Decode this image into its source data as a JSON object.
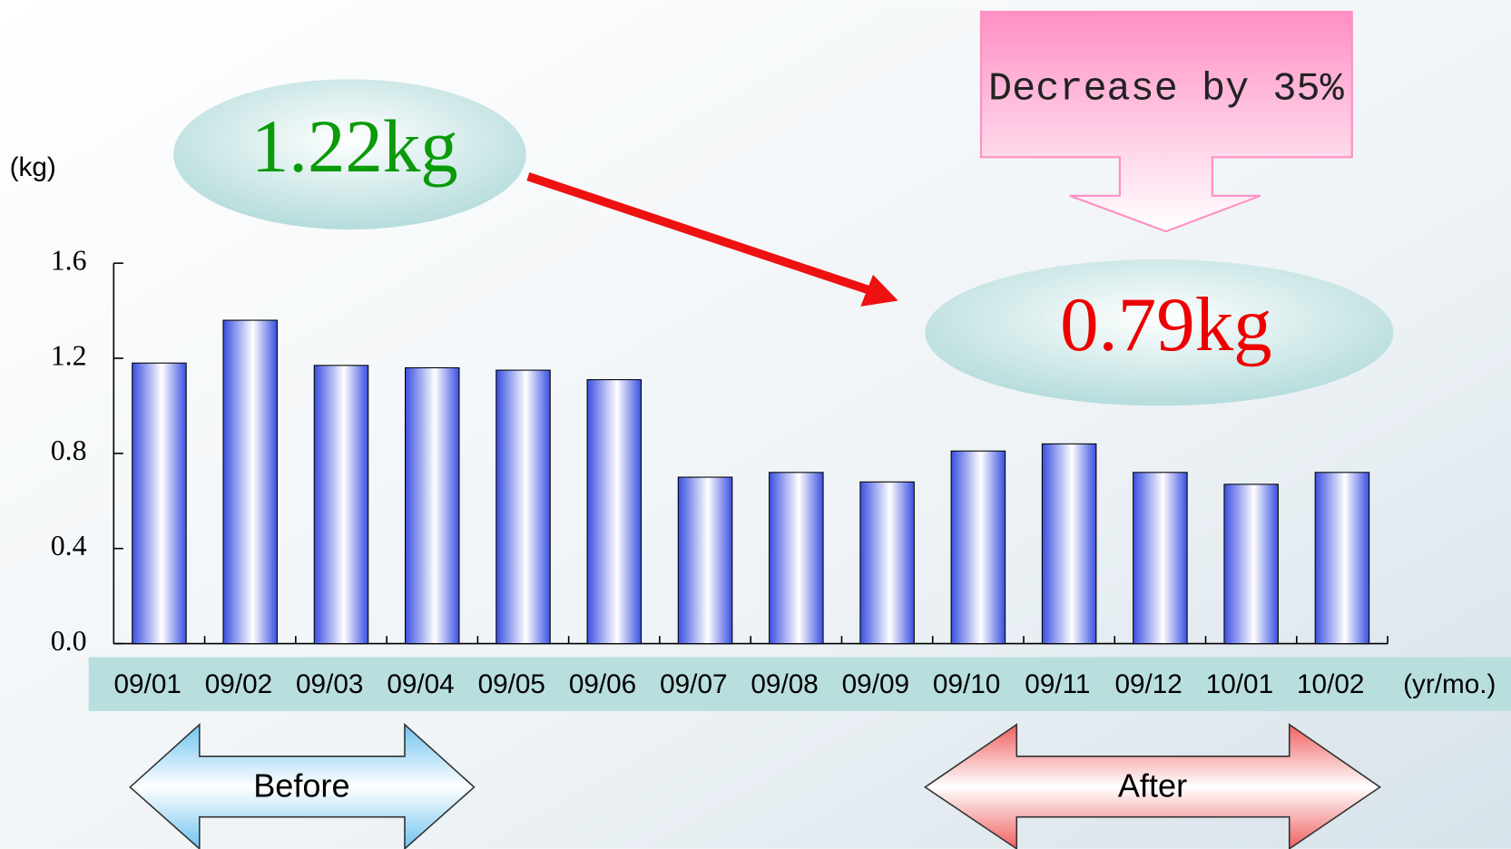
{
  "chart_data": {
    "type": "bar",
    "categories": [
      "09/01",
      "09/02",
      "09/03",
      "09/04",
      "09/05",
      "09/06",
      "09/07",
      "09/08",
      "09/09",
      "09/10",
      "09/11",
      "09/12",
      "10/01",
      "10/02"
    ],
    "values": [
      1.18,
      1.36,
      1.17,
      1.16,
      1.15,
      1.11,
      0.7,
      0.72,
      0.68,
      0.81,
      0.84,
      0.72,
      0.67,
      0.72
    ],
    "color": "#3a4fe0",
    "ylim": [
      0,
      1.6
    ],
    "yticks": [
      {
        "value": 0,
        "label": "0.0"
      },
      0.4,
      0.8,
      1.2,
      1.6
    ],
    "y_label": "(kg)",
    "x_label": "(yr/mo.)",
    "annotations": {
      "before_value": "1.22kg",
      "after_value": "0.79kg",
      "decrease": "Decrease by 35%",
      "before": "Before",
      "after": "After"
    }
  }
}
